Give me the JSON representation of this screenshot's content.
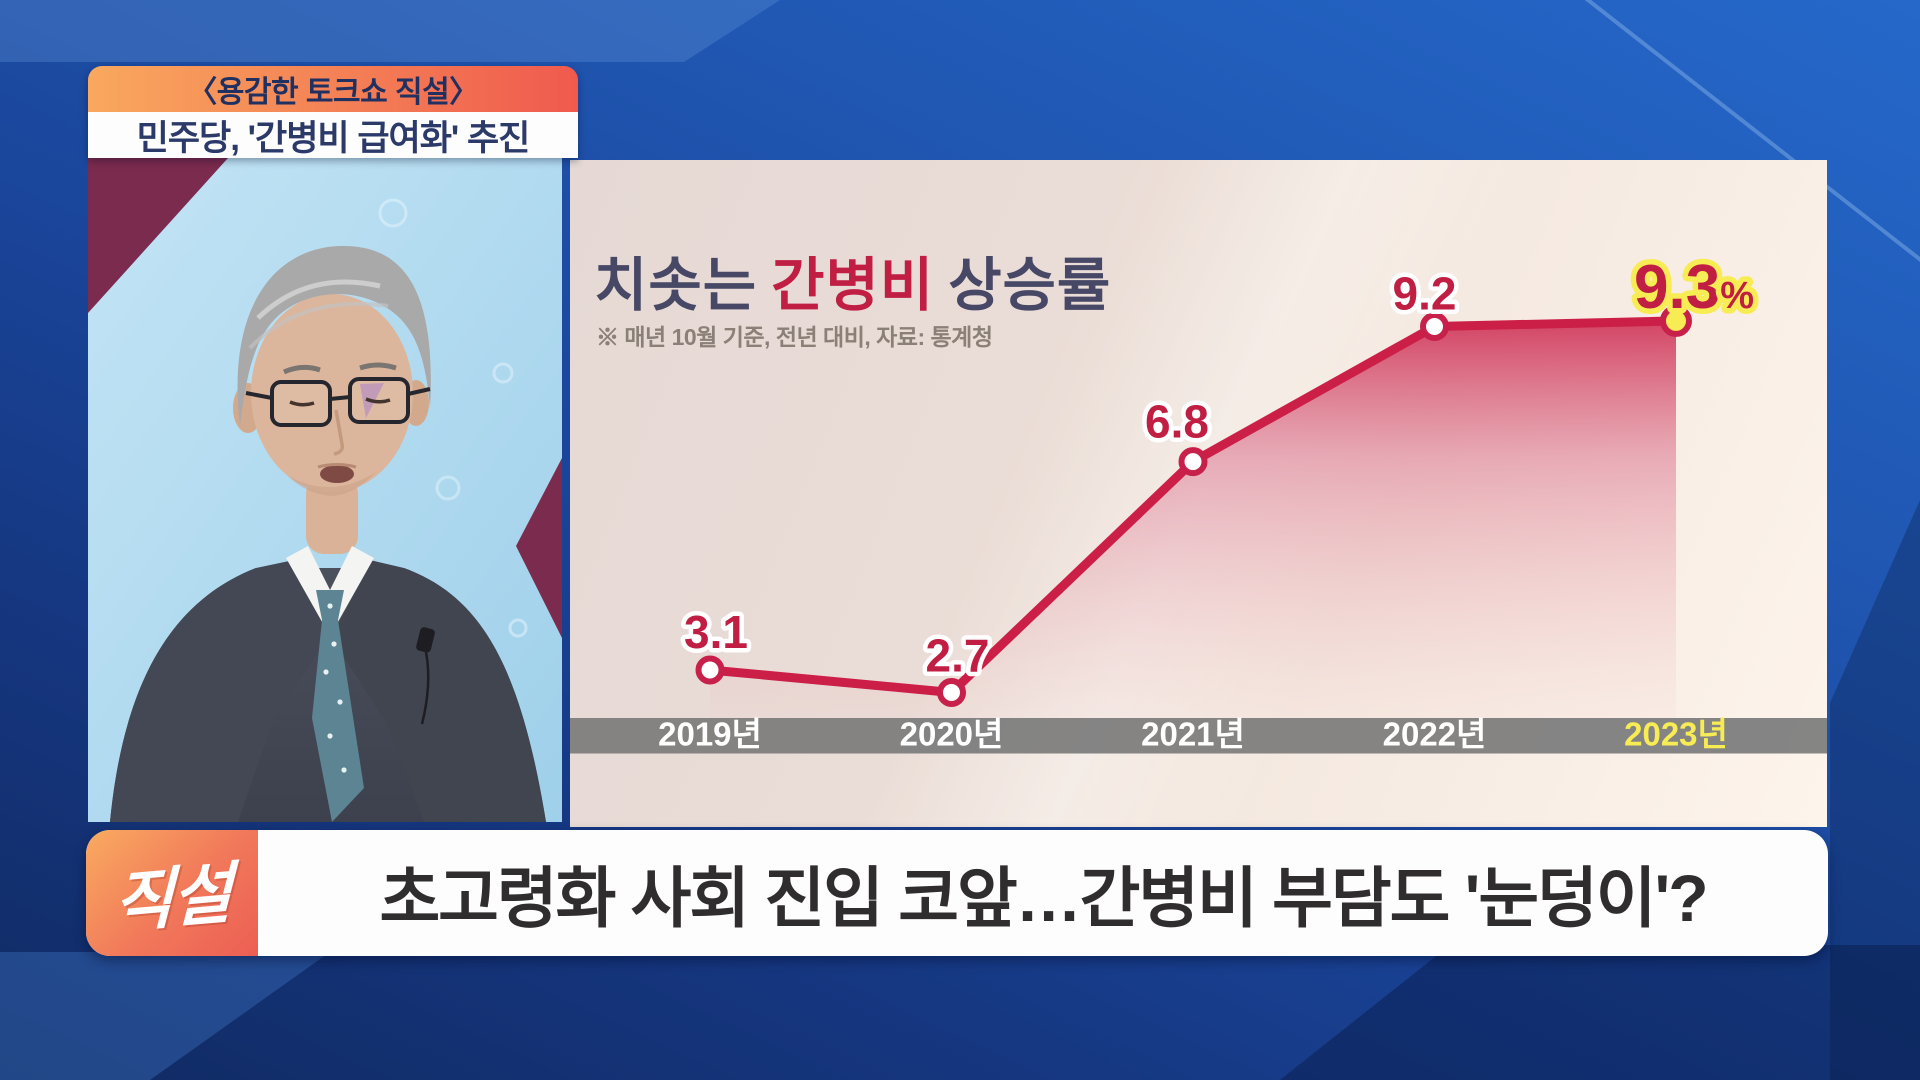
{
  "broadcast": {
    "top_banner": {
      "program_tag": "〈용감한 토크쇼 직설〉",
      "headline": "민주당, '간병비 급여화' 추진"
    },
    "bottom_banner": {
      "logo": "직설",
      "headline": "초고령화 사회 진입 코앞…간병비 부담도 '눈덩이'?"
    }
  },
  "chart_data": {
    "type": "line",
    "title": "치솟는 간병비 상승률",
    "title_parts": [
      "치솟는",
      "간병비",
      "상승률"
    ],
    "note": "※ 매년 10월 기준, 전년 대비, 자료: 통계청",
    "categories": [
      "2019년",
      "2020년",
      "2021년",
      "2022년",
      "2023년"
    ],
    "values": [
      3.1,
      2.7,
      6.8,
      9.2,
      9.3
    ],
    "value_labels": [
      "3.1",
      "2.7",
      "6.8",
      "9.2",
      "9.3%"
    ],
    "unit": "%",
    "highlight_index": 4,
    "ylim": [
      0,
      12
    ],
    "grid": false,
    "legend": false,
    "area_fill": true
  },
  "colors": {
    "accent_crimson": "#c7204a",
    "label_red": "#c01e43",
    "highlight_yellow": "#f8ec55",
    "banner_navy_text": "#2b3a69",
    "title_navy": "#474766",
    "note_gray": "#8b8078",
    "axis_band_gray": "#7c7c7c",
    "axis_label_white": "#ffffff",
    "headline_charcoal": "#2f2d2e",
    "frame_blue": "#1e50a8",
    "panel_beige": "#e9dcd6",
    "orange_left": "#f9a85e",
    "orange_right": "#f05a4e"
  }
}
